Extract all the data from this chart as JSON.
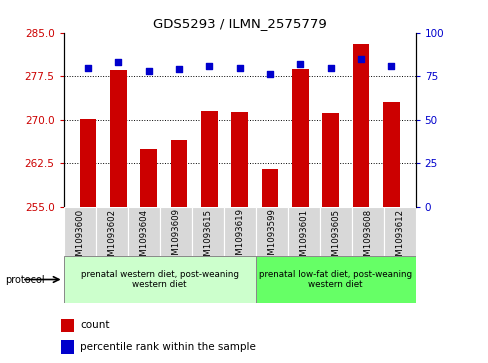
{
  "title": "GDS5293 / ILMN_2575779",
  "categories": [
    "GSM1093600",
    "GSM1093602",
    "GSM1093604",
    "GSM1093609",
    "GSM1093615",
    "GSM1093619",
    "GSM1093599",
    "GSM1093601",
    "GSM1093605",
    "GSM1093608",
    "GSM1093612"
  ],
  "bar_values": [
    270.2,
    278.5,
    265.0,
    266.5,
    271.5,
    271.3,
    261.5,
    278.8,
    271.2,
    283.0,
    273.0
  ],
  "percentile_values": [
    80,
    83,
    78,
    79,
    81,
    80,
    76,
    82,
    80,
    85,
    81
  ],
  "bar_color": "#cc0000",
  "dot_color": "#0000cc",
  "ylim_left": [
    255,
    285
  ],
  "ylim_right": [
    0,
    100
  ],
  "yticks_left": [
    255,
    262.5,
    270,
    277.5,
    285
  ],
  "yticks_right": [
    0,
    25,
    50,
    75,
    100
  ],
  "group1_label": "prenatal western diet, post-weaning\nwestern diet",
  "group2_label": "prenatal low-fat diet, post-weaning\nwestern diet",
  "group1_count": 6,
  "group2_count": 5,
  "group1_color": "#ccffcc",
  "group2_color": "#66ff66",
  "protocol_label": "protocol",
  "legend_count_label": "count",
  "legend_pct_label": "percentile rank within the sample",
  "plot_bg_color": "#ffffff",
  "tick_area_color": "#d8d8d8"
}
